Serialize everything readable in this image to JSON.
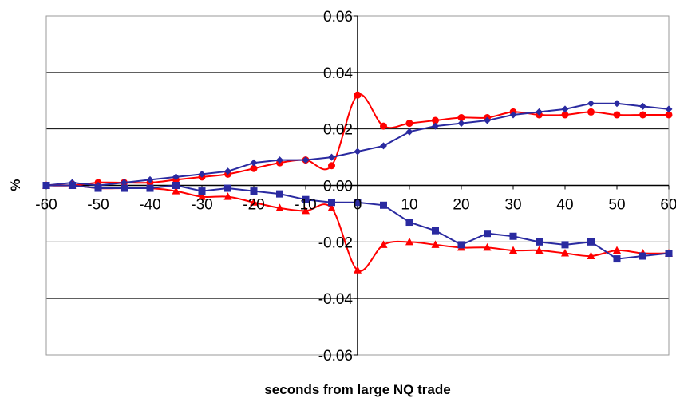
{
  "chart_data": {
    "type": "line",
    "title": "",
    "xlabel": "seconds from large NQ trade",
    "ylabel": "%",
    "xlim": [
      -60,
      60
    ],
    "ylim": [
      -0.06,
      0.06
    ],
    "x_ticks": [
      -60,
      -50,
      -40,
      -30,
      -20,
      -10,
      0,
      10,
      20,
      30,
      40,
      50,
      60
    ],
    "y_ticks": [
      0.06,
      0.04,
      0.02,
      0.0,
      -0.02,
      -0.04,
      -0.06
    ],
    "x_tick_labels": [
      "-60",
      "-50",
      "-40",
      "-30",
      "-20",
      "-10",
      "0",
      "10",
      "20",
      "30",
      "40",
      "50",
      "60"
    ],
    "y_tick_labels": [
      "0.06",
      "0.04",
      "0.02",
      "0.00",
      "-0.02",
      "-0.04",
      "-0.06"
    ],
    "grid": "horizontal",
    "x": [
      -60,
      -55,
      -50,
      -45,
      -40,
      -35,
      -30,
      -25,
      -20,
      -15,
      -10,
      -5,
      0,
      5,
      10,
      15,
      20,
      25,
      30,
      35,
      40,
      45,
      50,
      55,
      60
    ],
    "series": [
      {
        "color": "#ff0000",
        "marker": "circle",
        "smooth": true,
        "values": [
          0.0,
          0.0,
          0.001,
          0.001,
          0.001,
          0.002,
          0.003,
          0.004,
          0.006,
          0.008,
          0.009,
          0.007,
          0.032,
          0.021,
          0.022,
          0.023,
          0.024,
          0.024,
          0.026,
          0.025,
          0.025,
          0.026,
          0.025,
          0.025,
          0.025
        ]
      },
      {
        "color": "#2a2aa0",
        "marker": "diamond",
        "smooth": false,
        "values": [
          0.0,
          0.001,
          0.0,
          0.001,
          0.002,
          0.003,
          0.004,
          0.005,
          0.008,
          0.009,
          0.009,
          0.01,
          0.012,
          0.014,
          0.019,
          0.021,
          0.022,
          0.023,
          0.025,
          0.026,
          0.027,
          0.029,
          0.029,
          0.028,
          0.027
        ]
      },
      {
        "color": "#ff0000",
        "marker": "triangle",
        "smooth": true,
        "values": [
          0.0,
          0.0,
          -0.001,
          -0.001,
          -0.001,
          -0.002,
          -0.004,
          -0.004,
          -0.006,
          -0.008,
          -0.009,
          -0.008,
          -0.03,
          -0.021,
          -0.02,
          -0.021,
          -0.022,
          -0.022,
          -0.023,
          -0.023,
          -0.024,
          -0.025,
          -0.023,
          -0.024,
          -0.024
        ]
      },
      {
        "color": "#2a2aa0",
        "marker": "square",
        "smooth": false,
        "values": [
          0.0,
          0.0,
          -0.001,
          -0.001,
          -0.001,
          0.0,
          -0.002,
          -0.001,
          -0.002,
          -0.003,
          -0.005,
          -0.006,
          -0.006,
          -0.007,
          -0.013,
          -0.016,
          -0.021,
          -0.017,
          -0.018,
          -0.02,
          -0.021,
          -0.02,
          -0.026,
          -0.025,
          -0.024
        ]
      }
    ]
  }
}
